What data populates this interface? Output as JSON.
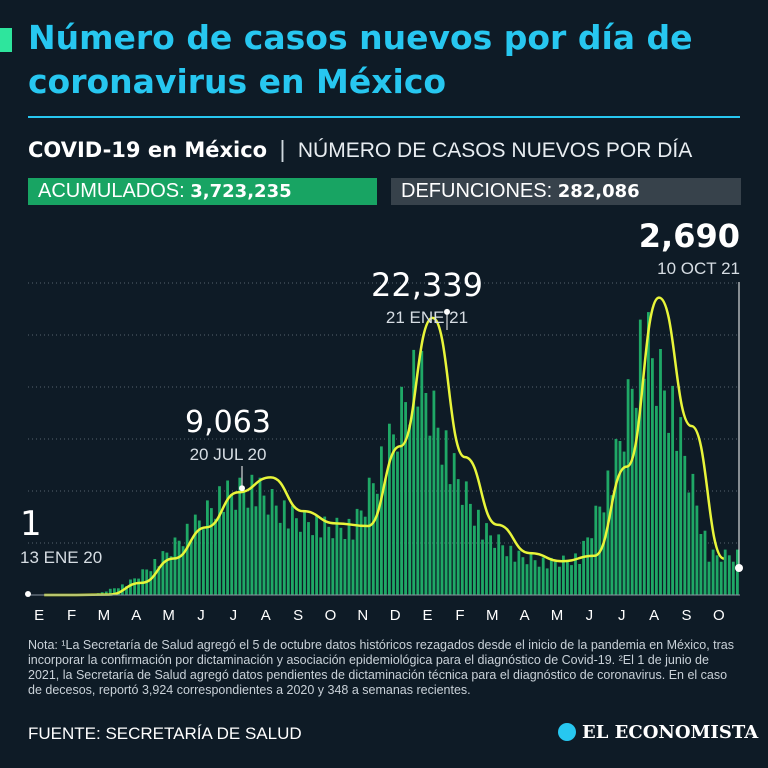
{
  "title": "Número de casos nuevos por día de coronavirus en México",
  "subtitle": {
    "bold": "COVID-19 en México",
    "separator": "|",
    "rest": "NÚMERO DE CASOS NUEVOS POR DÍA"
  },
  "badges": {
    "acumulados_label": "ACUMULADOS:",
    "acumulados_value": "3,723,235",
    "defunciones_label": "DEFUNCIONES:",
    "defunciones_value": "282,086"
  },
  "note": "Nota: ¹La Secretaría de Salud agregó el 5 de octubre datos históricos rezagados desde el inicio de la pandemia en México, tras incorporar la confirmación por dictaminación y asociación epidemiológica para el diagnóstico de Covid-19. ²El 1 de junio de 2021, la Secretaría de Salud agregó datos pendientes de dictaminación técnica para el diagnóstico de coronavirus. En el caso de decesos, reportó 3,924 correspondientes a 2020 y 348 a semanas recientes.",
  "source": "FUENTE: SECRETARÍA DE SALUD",
  "logo": "EL ECONOMISTA",
  "colors": {
    "accent": "#27c7f0",
    "bars": "#1fa866",
    "line": "#e8f53a",
    "background": "#0e1b26"
  },
  "chart_data": {
    "type": "bar",
    "xlabel": "",
    "ylabel": "",
    "x_ticks": [
      "E",
      "F",
      "M",
      "A",
      "M",
      "J",
      "J",
      "A",
      "S",
      "O",
      "N",
      "D",
      "E",
      "F",
      "M",
      "A",
      "M",
      "J",
      "J",
      "A",
      "S",
      "O"
    ],
    "ylim": [
      0,
      27000
    ],
    "grid": true,
    "annotations": [
      {
        "value": "1",
        "date": "13 ENE 20"
      },
      {
        "value": "9,063",
        "date": "20 JUL 20"
      },
      {
        "value": "22,339",
        "date": "21 ENE 21"
      },
      {
        "value": "2,690",
        "date": "10 OCT 21"
      }
    ],
    "series": [
      {
        "type": "bar",
        "values_monthly_avg": [
          0,
          0,
          20,
          800,
          2600,
          5000,
          7500,
          8000,
          6000,
          5200,
          5000,
          10500,
          17000,
          10000,
          5000,
          3000,
          2400,
          2800,
          9000,
          19500,
          13000,
          3000
        ]
      },
      {
        "type": "line",
        "values_smoothed": [
          0,
          0,
          30,
          900,
          2700,
          5000,
          7600,
          8700,
          6200,
          5300,
          5100,
          11000,
          20500,
          10200,
          5200,
          3100,
          2500,
          2900,
          9500,
          22000,
          12500,
          2690
        ]
      }
    ]
  }
}
